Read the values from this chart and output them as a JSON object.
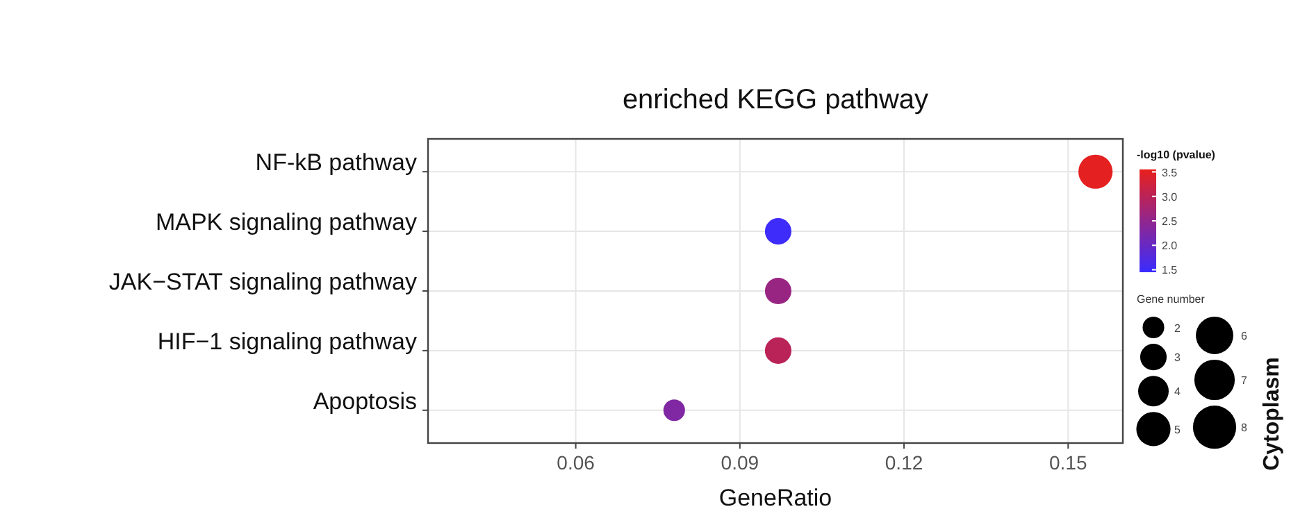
{
  "chart_data": {
    "type": "bubble",
    "title": "enriched KEGG pathway",
    "xlabel": "GeneRatio",
    "orientation": "horizontal",
    "categories": [
      "NF-kB pathway",
      "MAPK signaling pathway",
      "JAK−STAT signaling pathway",
      "HIF−1 signaling pathway",
      "Apoptosis"
    ],
    "values": [
      0.155,
      0.097,
      0.097,
      0.097,
      0.078
    ],
    "sizes": [
      5,
      3,
      3,
      3,
      2
    ],
    "cvalues": [
      3.5,
      1.5,
      2.6,
      3.0,
      2.3
    ],
    "xlim": [
      0.033,
      0.16
    ],
    "xticks": [
      0.06,
      0.09,
      0.12,
      0.15
    ],
    "clabel": "-log10 (pvalue)",
    "clim": [
      1.45,
      3.55
    ],
    "cticks": [
      1.5,
      {
        "value": 2,
        "label": "2.0"
      },
      2.5,
      {
        "value": 3,
        "label": "3.0"
      },
      3.5
    ],
    "legend_title": "Gene number",
    "size_legend": [
      2,
      3,
      4,
      5,
      6,
      7,
      8
    ],
    "grid": true,
    "annotations": [
      "Cytoplasm"
    ]
  }
}
